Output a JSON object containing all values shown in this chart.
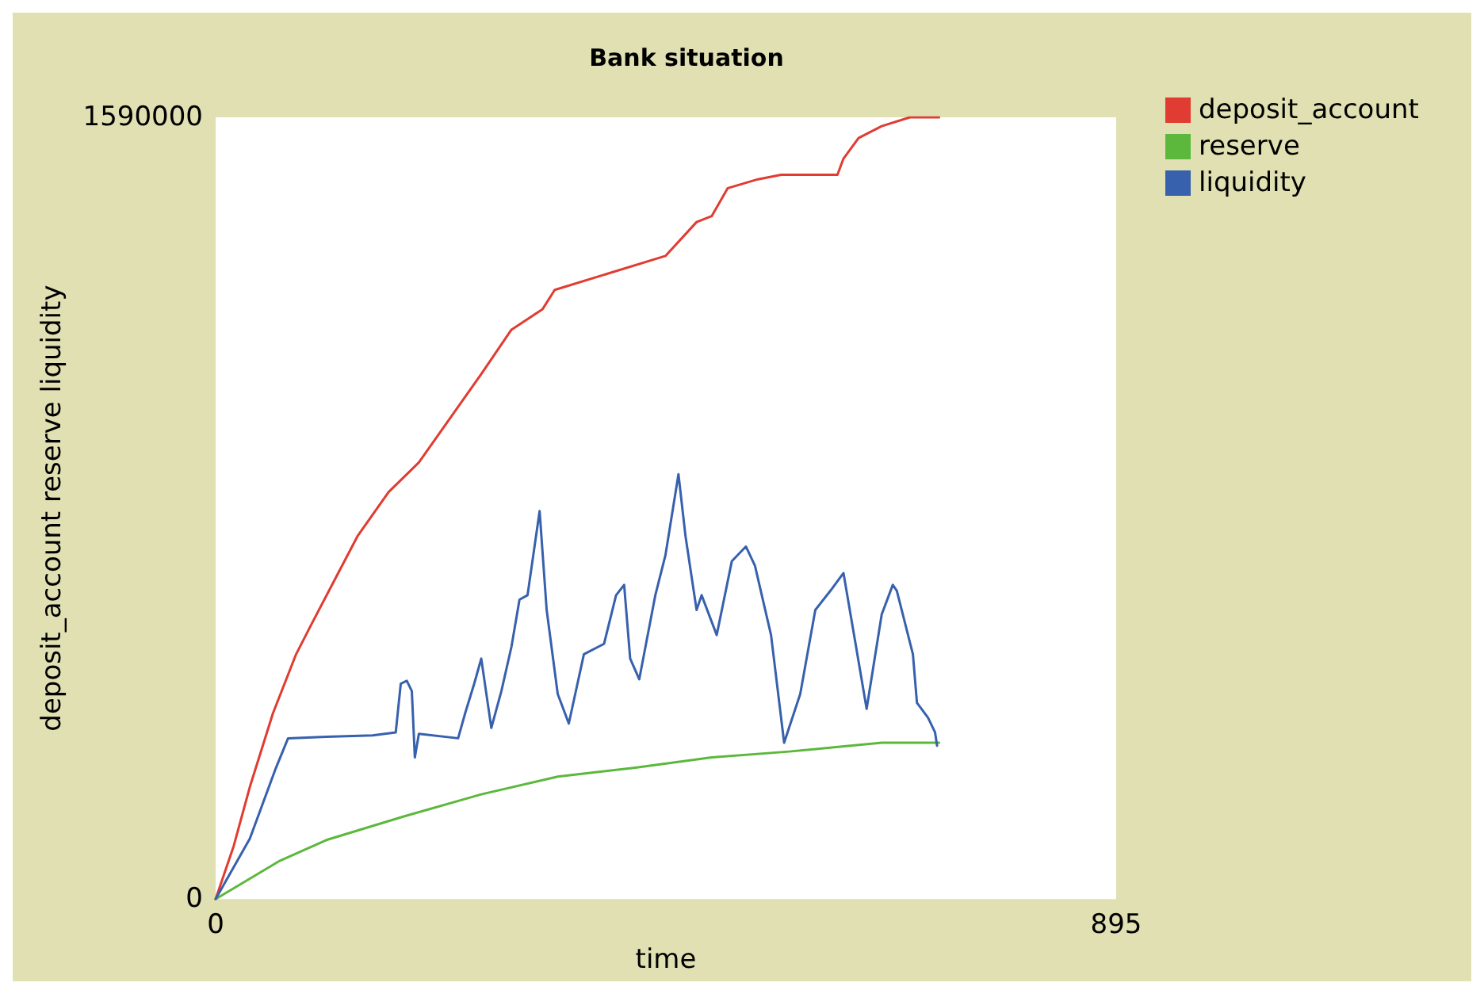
{
  "chart_data": {
    "type": "line",
    "title": "Bank situation",
    "xlabel": "time",
    "ylabel": "deposit_account reserve liquidity",
    "xlim": [
      0,
      895
    ],
    "xticks": [
      0,
      895
    ],
    "ylim": [
      0,
      1590000
    ],
    "yticks": [
      0,
      1590000
    ],
    "grid": false,
    "legend": "top right",
    "marker": "none",
    "line_style": "solid",
    "series": [
      {
        "name": "deposit_account",
        "color": "#e03c31",
        "x": [
          0,
          18,
          34,
          57,
          80,
          95,
          118,
          141,
          172,
          202,
          233,
          264,
          294,
          325,
          337,
          447,
          478,
          493,
          509,
          539,
          562,
          618,
          624,
          639,
          662,
          690,
          719
        ],
        "values": [
          0,
          108000,
          228000,
          378000,
          498000,
          558000,
          648000,
          738000,
          828000,
          888000,
          978000,
          1068000,
          1158000,
          1200000,
          1239000,
          1308000,
          1377000,
          1389000,
          1446000,
          1464000,
          1473000,
          1473000,
          1506000,
          1548000,
          1572000,
          1590000,
          1590000
        ]
      },
      {
        "name": "reserve",
        "color": "#5cb83c",
        "x": [
          0,
          64,
          110,
          187,
          264,
          340,
          417,
          493,
          570,
          631,
          662,
          719
        ],
        "values": [
          0,
          78000,
          120000,
          168000,
          213000,
          249000,
          267000,
          288000,
          300000,
          312000,
          318000,
          318000
        ]
      },
      {
        "name": "liquidity",
        "color": "#3760ad",
        "x": [
          0,
          34,
          60,
          72,
          110,
          156,
          179,
          184,
          190,
          195,
          198,
          202,
          241,
          248,
          257,
          264,
          274,
          284,
          294,
          302,
          310,
          322,
          329,
          340,
          351,
          366,
          386,
          398,
          406,
          412,
          421,
          437,
          447,
          460,
          467,
          478,
          483,
          498,
          513,
          527,
          536,
          552,
          565,
          581,
          596,
          611,
          624,
          636,
          647,
          662,
          673,
          677,
          693,
          697,
          708,
          715,
          717
        ],
        "values": [
          0,
          123000,
          267000,
          327000,
          330000,
          333000,
          339000,
          438000,
          444000,
          423000,
          288000,
          336000,
          327000,
          378000,
          438000,
          489000,
          348000,
          423000,
          513000,
          609000,
          618000,
          789000,
          588000,
          417000,
          357000,
          498000,
          519000,
          618000,
          639000,
          489000,
          447000,
          618000,
          699000,
          864000,
          738000,
          588000,
          618000,
          537000,
          687000,
          717000,
          678000,
          537000,
          318000,
          417000,
          588000,
          627000,
          663000,
          519000,
          387000,
          579000,
          639000,
          627000,
          498000,
          399000,
          369000,
          339000,
          312000
        ]
      }
    ]
  }
}
